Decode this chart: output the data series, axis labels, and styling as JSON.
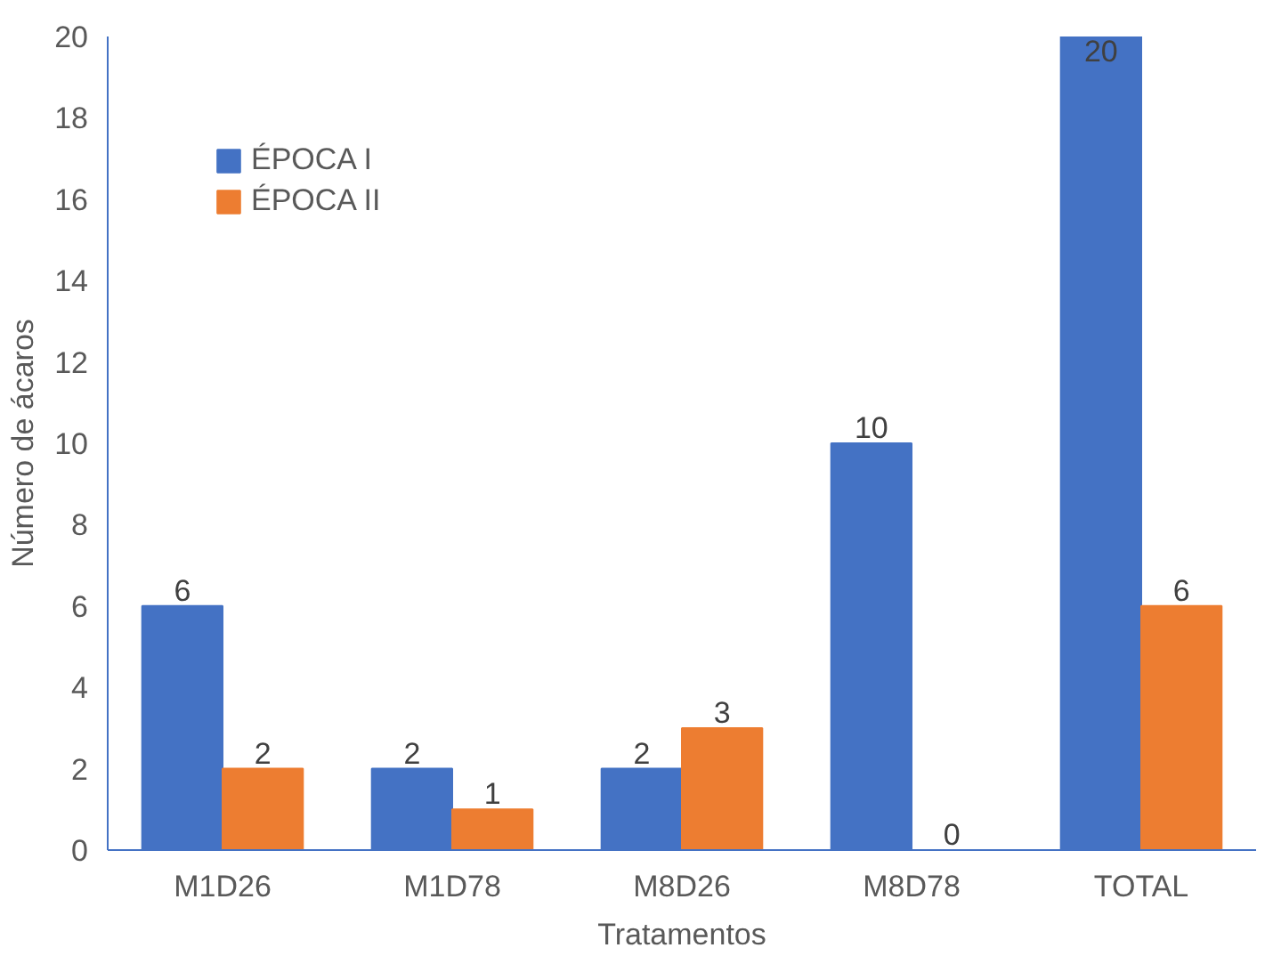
{
  "chart_data": {
    "type": "bar",
    "xlabel": "Tratamentos",
    "ylabel": "Número de ácaros",
    "categories": [
      "M1D26",
      "M1D78",
      "M8D26",
      "M8D78",
      "TOTAL"
    ],
    "series": [
      {
        "name": "ÉPOCA I",
        "color": "#4472c4",
        "values": [
          6,
          2,
          2,
          10,
          20
        ]
      },
      {
        "name": "ÉPOCA II",
        "color": "#ed7d31",
        "values": [
          2,
          1,
          3,
          0,
          6
        ]
      }
    ],
    "ylim": [
      0,
      20
    ],
    "yticks": [
      0,
      2,
      4,
      6,
      8,
      10,
      12,
      14,
      16,
      18,
      20
    ],
    "grid": false,
    "legend": "top left",
    "data_labels": true
  }
}
